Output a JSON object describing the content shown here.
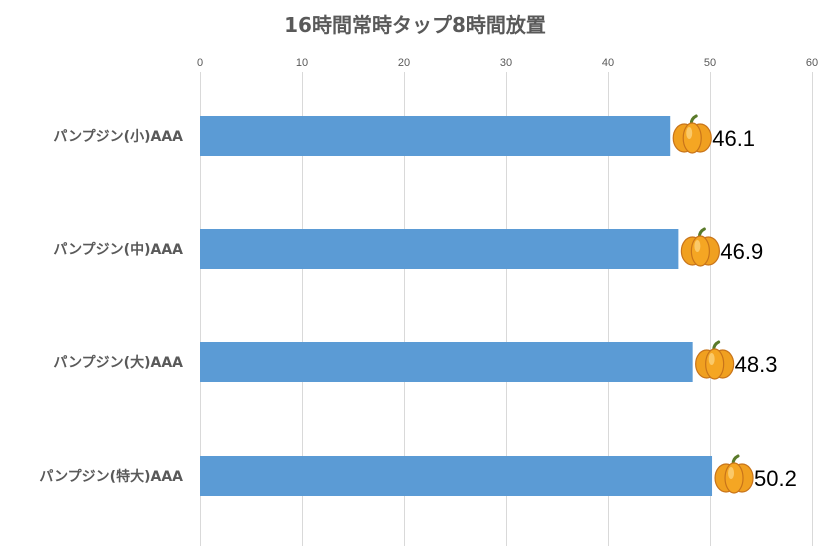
{
  "chart_data": {
    "type": "bar",
    "orientation": "horizontal",
    "title": "16時間常時タップ8時間放置",
    "xlabel": "",
    "ylabel": "",
    "categories": [
      "パンプジン(小)AAA",
      "パンプジン(中)AAA",
      "パンプジン(大)AAA",
      "パンプジン(特大)AAA"
    ],
    "values": [
      46.1,
      46.9,
      48.3,
      50.2
    ],
    "data_labels": [
      "46.1",
      "46.9",
      "48.3",
      "50.2"
    ],
    "xlim": [
      0,
      60
    ],
    "ticks": [
      "0",
      "10",
      "20",
      "30",
      "40",
      "50",
      "60"
    ],
    "axis_position": "top",
    "grid": true,
    "legend": "none",
    "bar_color": "#5b9bd5",
    "marker_icon": "pumpkin-icon",
    "pumpkin_color": "#f5a623"
  }
}
